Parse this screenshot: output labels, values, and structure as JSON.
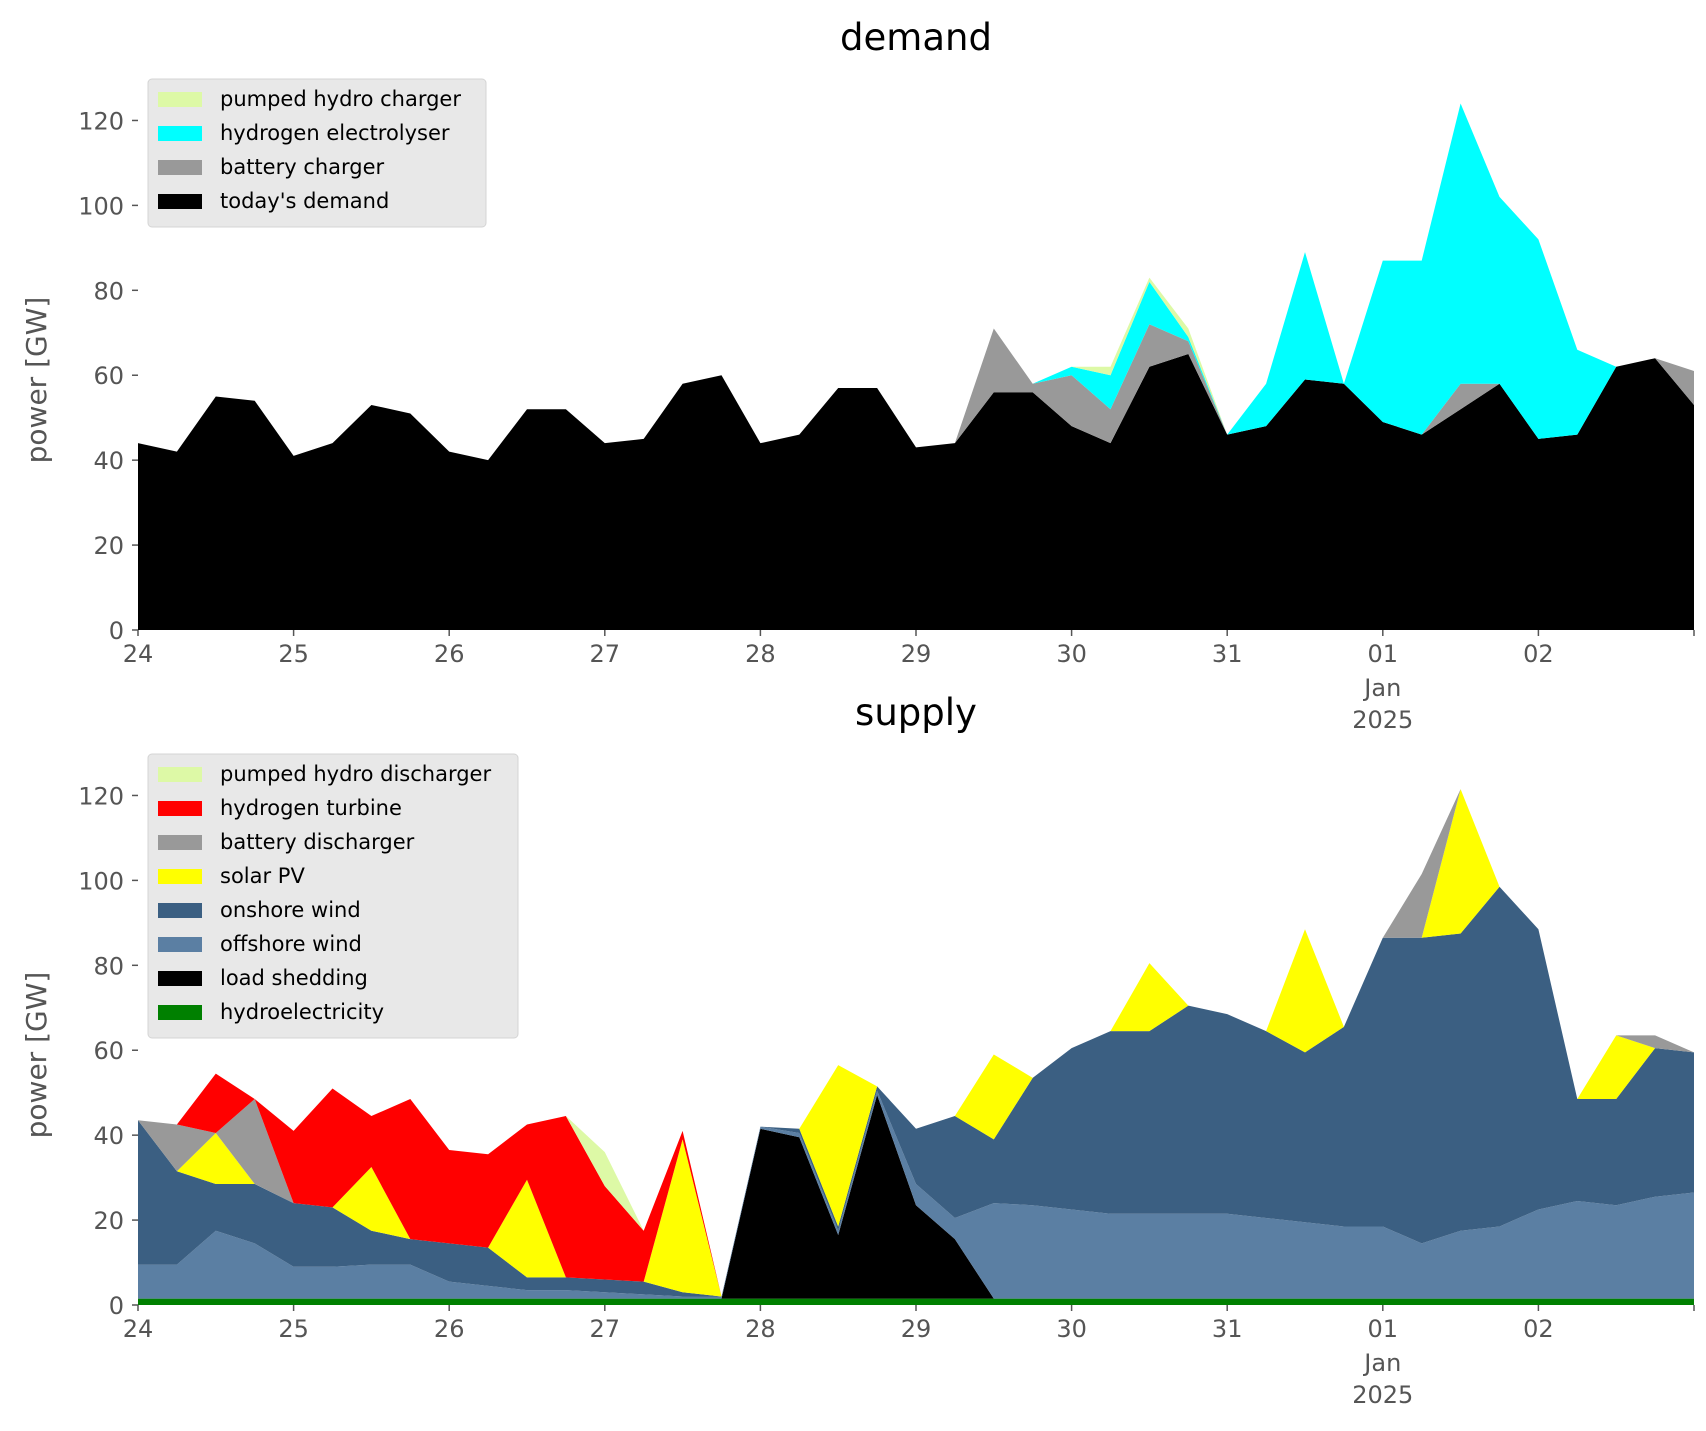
{
  "chart_data": [
    {
      "type": "area",
      "title": "demand",
      "ylabel": "power [GW]",
      "xlabel": "",
      "ylim": [
        0,
        130
      ],
      "x_range": [
        "2024-12-24T00:00",
        "2025-01-02T24:00"
      ],
      "x_ticks": [
        {
          "date": "2024-12-24",
          "label": "24"
        },
        {
          "date": "2024-12-25",
          "label": "25"
        },
        {
          "date": "2024-12-26",
          "label": "26"
        },
        {
          "date": "2024-12-27",
          "label": "27"
        },
        {
          "date": "2024-12-28",
          "label": "28"
        },
        {
          "date": "2024-12-29",
          "label": "29"
        },
        {
          "date": "2024-12-30",
          "label": "30"
        },
        {
          "date": "2024-12-31",
          "label": "31"
        },
        {
          "date": "2025-01-01",
          "label": "01",
          "sublabel": "Jan",
          "sublabel2": "2025"
        },
        {
          "date": "2025-01-02",
          "label": "02"
        }
      ],
      "y_ticks": [
        0,
        20,
        40,
        60,
        80,
        100,
        120
      ],
      "x": [
        "2024-12-24T00:00",
        "2024-12-24T06:00",
        "2024-12-24T12:00",
        "2024-12-24T18:00",
        "2024-12-25T00:00",
        "2024-12-25T06:00",
        "2024-12-25T12:00",
        "2024-12-25T18:00",
        "2024-12-26T00:00",
        "2024-12-26T06:00",
        "2024-12-26T12:00",
        "2024-12-26T18:00",
        "2024-12-27T00:00",
        "2024-12-27T06:00",
        "2024-12-27T12:00",
        "2024-12-27T18:00",
        "2024-12-28T00:00",
        "2024-12-28T06:00",
        "2024-12-28T12:00",
        "2024-12-28T18:00",
        "2024-12-29T00:00",
        "2024-12-29T06:00",
        "2024-12-29T12:00",
        "2024-12-29T18:00",
        "2024-12-30T00:00",
        "2024-12-30T06:00",
        "2024-12-30T12:00",
        "2024-12-30T18:00",
        "2024-12-31T00:00",
        "2024-12-31T06:00",
        "2024-12-31T12:00",
        "2024-12-31T18:00",
        "2025-01-01T00:00",
        "2025-01-01T06:00",
        "2025-01-01T12:00",
        "2025-01-01T18:00",
        "2025-01-02T00:00",
        "2025-01-02T06:00",
        "2025-01-02T12:00",
        "2025-01-02T18:00",
        "2025-01-02T24:00"
      ],
      "series": [
        {
          "name": "today's demand",
          "color": "#000000",
          "values": [
            44,
            42,
            55,
            54,
            41,
            44,
            53,
            51,
            42,
            40,
            52,
            52,
            44,
            45,
            58,
            60,
            44,
            46,
            57,
            57,
            43,
            44,
            56,
            56,
            48,
            44,
            62,
            65,
            46,
            48,
            59,
            58,
            49,
            46,
            52,
            58,
            45,
            46,
            62,
            64,
            53
          ]
        },
        {
          "name": "battery charger",
          "color": "#999999",
          "values": [
            0,
            0,
            0,
            0,
            0,
            0,
            0,
            0,
            0,
            0,
            0,
            0,
            0,
            0,
            0,
            0,
            0,
            0,
            0,
            0,
            0,
            0,
            15,
            2,
            12,
            8,
            10,
            3,
            0,
            0,
            0,
            0,
            0,
            0,
            6,
            0,
            0,
            0,
            0,
            0,
            8
          ]
        },
        {
          "name": "hydrogen electrolyser",
          "color": "#00ffff",
          "values": [
            0,
            0,
            0,
            0,
            0,
            0,
            0,
            0,
            0,
            0,
            0,
            0,
            0,
            0,
            0,
            0,
            0,
            0,
            0,
            0,
            0,
            0,
            0,
            0,
            2,
            8,
            10,
            1,
            0,
            10,
            30,
            0,
            38,
            41,
            66,
            44,
            47,
            20,
            0,
            0,
            0
          ]
        },
        {
          "name": "pumped hydro charger",
          "color": "#ddf9a6",
          "values": [
            0,
            0,
            0,
            0,
            0,
            0,
            0,
            0,
            0,
            0,
            0,
            0,
            0,
            0,
            0,
            0,
            0,
            0,
            0,
            0,
            0,
            0,
            0,
            0,
            0,
            2,
            1,
            2,
            0,
            0,
            0,
            0,
            0,
            0,
            0,
            0,
            0,
            0,
            0,
            0,
            0
          ]
        }
      ],
      "legend": {
        "placement": "upper left",
        "entries": [
          "pumped hydro charger",
          "hydrogen electrolyser",
          "battery charger",
          "today's demand"
        ]
      },
      "grid": false
    },
    {
      "type": "area",
      "title": "supply",
      "ylabel": "power [GW]",
      "xlabel": "",
      "ylim": [
        0,
        130
      ],
      "x_range": [
        "2024-12-24T00:00",
        "2025-01-02T24:00"
      ],
      "x_ticks": [
        {
          "date": "2024-12-24",
          "label": "24"
        },
        {
          "date": "2024-12-25",
          "label": "25"
        },
        {
          "date": "2024-12-26",
          "label": "26"
        },
        {
          "date": "2024-12-27",
          "label": "27"
        },
        {
          "date": "2024-12-28",
          "label": "28"
        },
        {
          "date": "2024-12-29",
          "label": "29"
        },
        {
          "date": "2024-12-30",
          "label": "30"
        },
        {
          "date": "2024-12-31",
          "label": "31"
        },
        {
          "date": "2025-01-01",
          "label": "01",
          "sublabel": "Jan",
          "sublabel2": "2025"
        },
        {
          "date": "2025-01-02",
          "label": "02"
        }
      ],
      "y_ticks": [
        0,
        20,
        40,
        60,
        80,
        100,
        120
      ],
      "x": [
        "2024-12-24T00:00",
        "2024-12-24T06:00",
        "2024-12-24T12:00",
        "2024-12-24T18:00",
        "2024-12-25T00:00",
        "2024-12-25T06:00",
        "2024-12-25T12:00",
        "2024-12-25T18:00",
        "2024-12-26T00:00",
        "2024-12-26T06:00",
        "2024-12-26T12:00",
        "2024-12-26T18:00",
        "2024-12-27T00:00",
        "2024-12-27T06:00",
        "2024-12-27T12:00",
        "2024-12-27T18:00",
        "2024-12-28T00:00",
        "2024-12-28T06:00",
        "2024-12-28T12:00",
        "2024-12-28T18:00",
        "2024-12-29T00:00",
        "2024-12-29T06:00",
        "2024-12-29T12:00",
        "2024-12-29T18:00",
        "2024-12-30T00:00",
        "2024-12-30T06:00",
        "2024-12-30T12:00",
        "2024-12-30T18:00",
        "2024-12-31T00:00",
        "2024-12-31T06:00",
        "2024-12-31T12:00",
        "2024-12-31T18:00",
        "2025-01-01T00:00",
        "2025-01-01T06:00",
        "2025-01-01T12:00",
        "2025-01-01T18:00",
        "2025-01-02T00:00",
        "2025-01-02T06:00",
        "2025-01-02T12:00",
        "2025-01-02T18:00",
        "2025-01-02T24:00"
      ],
      "series": [
        {
          "name": "hydroelectricity",
          "color": "#008000",
          "values": [
            1.5,
            1.5,
            1.5,
            1.5,
            1.5,
            1.5,
            1.5,
            1.5,
            1.5,
            1.5,
            1.5,
            1.5,
            1.5,
            1.5,
            1.5,
            1.5,
            1.5,
            1.5,
            1.5,
            1.5,
            1.5,
            1.5,
            1.5,
            1.5,
            1.5,
            1.5,
            1.5,
            1.5,
            1.5,
            1.5,
            1.5,
            1.5,
            1.5,
            1.5,
            1.5,
            1.5,
            1.5,
            1.5,
            1.5,
            1.5,
            1.5
          ]
        },
        {
          "name": "load shedding",
          "color": "#000000",
          "values": [
            0,
            0,
            0,
            0,
            0,
            0,
            0,
            0,
            0,
            0,
            0,
            0,
            0,
            0,
            0,
            0,
            40,
            38,
            15,
            48,
            22,
            14,
            0,
            0,
            0,
            0,
            0,
            0,
            0,
            0,
            0,
            0,
            0,
            0,
            0,
            0,
            0,
            0,
            0,
            0,
            0
          ]
        },
        {
          "name": "offshore wind",
          "color": "#5b7fa3",
          "values": [
            8,
            8,
            16,
            13,
            7.5,
            7.5,
            8,
            8,
            4,
            3,
            2,
            2,
            1.5,
            1,
            0.5,
            0.5,
            0.5,
            1,
            1,
            1,
            5,
            5,
            22.5,
            22,
            21,
            20,
            20,
            20,
            20,
            19,
            18,
            17,
            17,
            13,
            16,
            17,
            21,
            23,
            22,
            24,
            25
          ]
        },
        {
          "name": "onshore wind",
          "color": "#3b5f82",
          "values": [
            34,
            22,
            11,
            14,
            15,
            14,
            8,
            6,
            9,
            9,
            3,
            3,
            3,
            3,
            1,
            0,
            0,
            1,
            1,
            1,
            13,
            24,
            15,
            30,
            38,
            43,
            43,
            49,
            47,
            44,
            40,
            47,
            68,
            72,
            70,
            80,
            66,
            24,
            25,
            35,
            33
          ]
        },
        {
          "name": "solar PV",
          "color": "#ffff00",
          "values": [
            0,
            0,
            12,
            0,
            0,
            0,
            15,
            0,
            0,
            0,
            23,
            0,
            0,
            0,
            36,
            0,
            0,
            0,
            38,
            0,
            0,
            0,
            20,
            0,
            0,
            0,
            16,
            0,
            0,
            0,
            29,
            0,
            0,
            0,
            34,
            0,
            0,
            0,
            15,
            0,
            0
          ]
        },
        {
          "name": "battery discharger",
          "color": "#999999",
          "values": [
            0,
            11,
            0,
            20,
            0,
            0,
            0,
            0,
            0,
            0,
            0,
            0,
            0,
            0,
            0,
            0,
            0,
            0,
            0,
            0,
            0,
            0,
            0,
            0,
            0,
            0,
            0,
            0,
            0,
            0,
            0,
            0,
            0,
            15,
            0,
            0,
            0,
            0,
            0,
            3,
            0
          ]
        },
        {
          "name": "hydrogen turbine",
          "color": "#ff0000",
          "values": [
            0,
            0,
            14,
            0,
            17,
            28,
            12,
            33,
            22,
            22,
            13,
            38,
            22,
            12,
            2,
            0,
            0,
            0,
            0,
            0,
            0,
            0,
            0,
            0,
            0,
            0,
            0,
            0,
            0,
            0,
            0,
            0,
            0,
            0,
            0,
            0,
            0,
            0,
            0,
            0,
            0
          ]
        },
        {
          "name": "pumped hydro discharger",
          "color": "#ddf9a6",
          "values": [
            0,
            0,
            0,
            0,
            0,
            0,
            0,
            0,
            0,
            0,
            0,
            0,
            8,
            0,
            0,
            0,
            0,
            0,
            0,
            0,
            0,
            0,
            0,
            0,
            0,
            0,
            0,
            0,
            0,
            0,
            0,
            0,
            0,
            0,
            0,
            0,
            0,
            0,
            0,
            0,
            0
          ]
        }
      ],
      "legend": {
        "placement": "upper left",
        "entries": [
          "pumped hydro discharger",
          "hydrogen turbine",
          "battery discharger",
          "solar PV",
          "onshore wind",
          "offshore wind",
          "load shedding",
          "hydroelectricity"
        ]
      },
      "grid": false
    }
  ]
}
